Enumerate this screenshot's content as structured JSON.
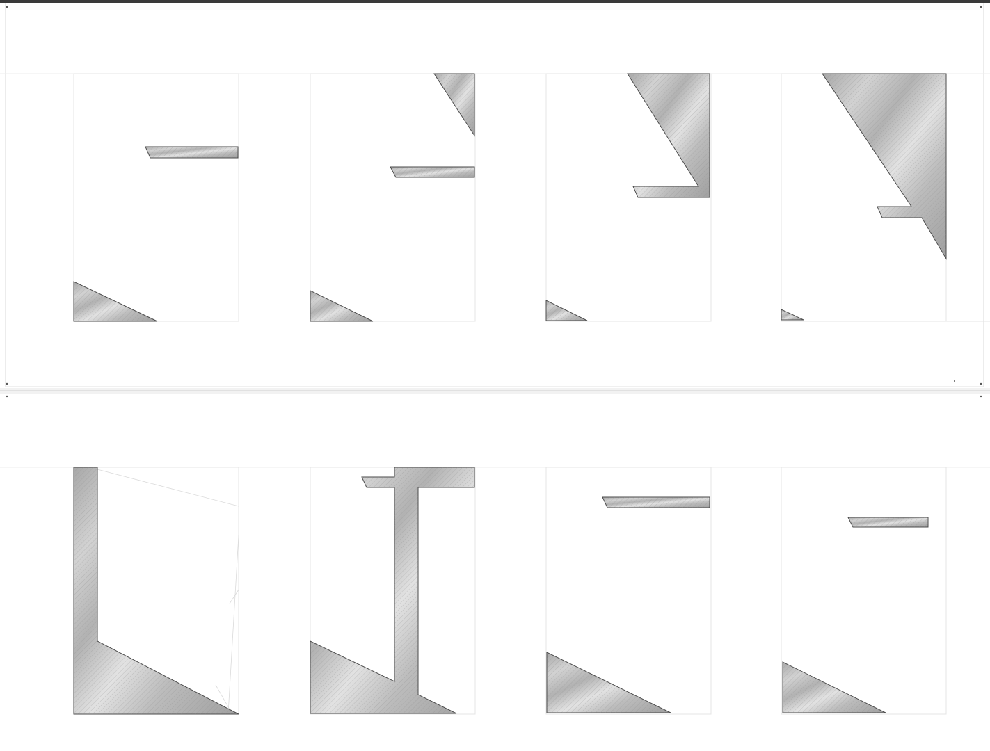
{
  "artwork": {
    "sheets": 2,
    "panels_per_sheet": 4,
    "fill_colors": {
      "light": "#f4f4f4",
      "mid": "#c9c9c9",
      "dark": "#9a9a9a"
    },
    "guide_color": "#e4e4e4",
    "stroke_color": "#4a4a4a"
  }
}
